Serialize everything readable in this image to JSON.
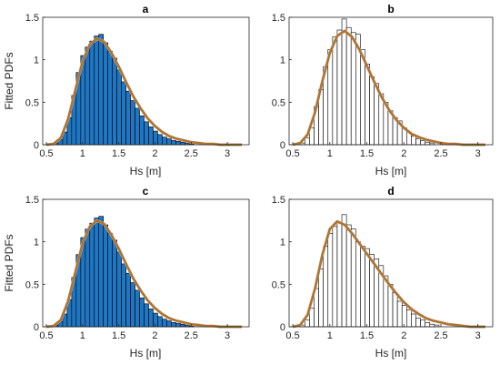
{
  "colors": {
    "filled_bar": "#1f77c4",
    "empty_bar": "#ffffff",
    "bar_edge": "#000000",
    "fit_line_outer": "#e8a0a8",
    "fit_line_main": "#5a8a2a",
    "fit_line_inner": "#d2691e"
  },
  "chart_data": [
    {
      "type": "bar",
      "title": "a",
      "xlabel": "Hs [m]",
      "ylabel": "Fitted PDFs",
      "xlim": [
        0.45,
        3.3
      ],
      "ylim": [
        0,
        1.5
      ],
      "xticks": [
        "0.5",
        "1",
        "1.5",
        "2",
        "2.5",
        "3"
      ],
      "xtick_values": [
        0.5,
        1,
        1.5,
        2,
        2.5,
        3
      ],
      "yticks": [
        "0",
        "0.5",
        "1",
        "1.5"
      ],
      "ytick_values": [
        0,
        0.5,
        1,
        1.5
      ],
      "bar_style": "filled",
      "bin_width": 0.0625,
      "bin_starts": [
        0.6,
        0.6625,
        0.725,
        0.7875,
        0.85,
        0.9125,
        0.975,
        1.0375,
        1.1,
        1.1625,
        1.225,
        1.2875,
        1.35,
        1.4125,
        1.475,
        1.5375,
        1.6,
        1.6625,
        1.725,
        1.7875,
        1.85,
        1.9125,
        1.975,
        2.0375,
        2.1,
        2.1625,
        2.225,
        2.2875,
        2.35,
        2.4125,
        2.475
      ],
      "values": [
        0.02,
        0.06,
        0.15,
        0.32,
        0.58,
        0.85,
        1.05,
        1.15,
        1.22,
        1.28,
        1.3,
        1.2,
        1.1,
        1.02,
        0.88,
        0.74,
        0.63,
        0.52,
        0.43,
        0.34,
        0.27,
        0.21,
        0.16,
        0.12,
        0.09,
        0.07,
        0.05,
        0.04,
        0.03,
        0.02,
        0.01
      ],
      "fit_curve": {
        "x": [
          0.5,
          0.6,
          0.7,
          0.8,
          0.9,
          1.0,
          1.1,
          1.2,
          1.3,
          1.4,
          1.5,
          1.6,
          1.7,
          1.8,
          1.9,
          2.0,
          2.1,
          2.2,
          2.3,
          2.4,
          2.5,
          2.6,
          2.7,
          2.8,
          2.9,
          3.0,
          3.1,
          3.2
        ],
        "y": [
          0.0,
          0.01,
          0.08,
          0.3,
          0.64,
          0.98,
          1.18,
          1.25,
          1.21,
          1.08,
          0.92,
          0.74,
          0.57,
          0.43,
          0.31,
          0.22,
          0.15,
          0.1,
          0.07,
          0.05,
          0.03,
          0.02,
          0.01,
          0.01,
          0.0,
          0.0,
          0.0,
          0.0
        ]
      }
    },
    {
      "type": "bar",
      "title": "b",
      "xlabel": "Hs [m]",
      "ylabel": "",
      "xlim": [
        0.45,
        3.2
      ],
      "ylim": [
        0,
        1.5
      ],
      "xticks": [
        "0.5",
        "1",
        "1.5",
        "2",
        "2.5",
        "3"
      ],
      "xtick_values": [
        0.5,
        1,
        1.5,
        2,
        2.5,
        3
      ],
      "yticks": [
        "0",
        "0.5",
        "1",
        "1.5"
      ],
      "ytick_values": [
        0,
        0.5,
        1,
        1.5
      ],
      "bar_style": "outline",
      "bin_width": 0.0625,
      "bin_starts": [
        0.6,
        0.6625,
        0.725,
        0.7875,
        0.85,
        0.9125,
        0.975,
        1.0375,
        1.1,
        1.1625,
        1.225,
        1.2875,
        1.35,
        1.4125,
        1.475,
        1.5375,
        1.6,
        1.6625,
        1.725,
        1.7875,
        1.85,
        1.9125,
        1.975,
        2.0375,
        2.1,
        2.1625,
        2.225,
        2.2875,
        2.35
      ],
      "values": [
        0.02,
        0.08,
        0.2,
        0.45,
        0.65,
        0.92,
        1.12,
        1.27,
        1.35,
        1.48,
        1.38,
        1.32,
        1.3,
        1.12,
        0.95,
        0.8,
        0.72,
        0.6,
        0.5,
        0.4,
        0.32,
        0.28,
        0.2,
        0.15,
        0.1,
        0.07,
        0.05,
        0.03,
        0.02
      ],
      "fit_curve": {
        "x": [
          0.5,
          0.6,
          0.7,
          0.8,
          0.9,
          1.0,
          1.1,
          1.2,
          1.3,
          1.4,
          1.5,
          1.6,
          1.7,
          1.8,
          1.9,
          2.0,
          2.1,
          2.2,
          2.3,
          2.4,
          2.5,
          2.6,
          2.7,
          2.8,
          2.9,
          3.0,
          3.1
        ],
        "y": [
          0.0,
          0.02,
          0.12,
          0.38,
          0.75,
          1.08,
          1.28,
          1.34,
          1.27,
          1.12,
          0.93,
          0.74,
          0.56,
          0.41,
          0.29,
          0.2,
          0.13,
          0.09,
          0.06,
          0.04,
          0.02,
          0.01,
          0.01,
          0.0,
          0.0,
          0.0,
          0.0
        ]
      }
    },
    {
      "type": "bar",
      "title": "c",
      "xlabel": "Hs [m]",
      "ylabel": "Fitted PDFs",
      "xlim": [
        0.45,
        3.3
      ],
      "ylim": [
        0,
        1.5
      ],
      "xticks": [
        "0.5",
        "1",
        "1.5",
        "2",
        "2.5",
        "3"
      ],
      "xtick_values": [
        0.5,
        1,
        1.5,
        2,
        2.5,
        3
      ],
      "yticks": [
        "0",
        "0.5",
        "1",
        "1.5"
      ],
      "ytick_values": [
        0,
        0.5,
        1,
        1.5
      ],
      "bar_style": "filled",
      "bin_width": 0.0625,
      "bin_starts": [
        0.6,
        0.6625,
        0.725,
        0.7875,
        0.85,
        0.9125,
        0.975,
        1.0375,
        1.1,
        1.1625,
        1.225,
        1.2875,
        1.35,
        1.4125,
        1.475,
        1.5375,
        1.6,
        1.6625,
        1.725,
        1.7875,
        1.85,
        1.9125,
        1.975,
        2.0375,
        2.1,
        2.1625,
        2.225,
        2.2875,
        2.35,
        2.4125,
        2.475
      ],
      "values": [
        0.02,
        0.06,
        0.15,
        0.32,
        0.58,
        0.85,
        1.05,
        1.15,
        1.22,
        1.28,
        1.3,
        1.2,
        1.1,
        1.02,
        0.88,
        0.74,
        0.63,
        0.52,
        0.43,
        0.34,
        0.27,
        0.21,
        0.16,
        0.12,
        0.09,
        0.07,
        0.05,
        0.04,
        0.03,
        0.02,
        0.01
      ],
      "fit_curve": {
        "x": [
          0.5,
          0.6,
          0.7,
          0.8,
          0.9,
          1.0,
          1.1,
          1.2,
          1.3,
          1.4,
          1.5,
          1.6,
          1.7,
          1.8,
          1.9,
          2.0,
          2.1,
          2.2,
          2.3,
          2.4,
          2.5,
          2.6,
          2.7,
          2.8,
          2.9,
          3.0,
          3.1,
          3.2
        ],
        "y": [
          0.0,
          0.01,
          0.08,
          0.3,
          0.64,
          0.98,
          1.18,
          1.25,
          1.21,
          1.08,
          0.92,
          0.74,
          0.57,
          0.43,
          0.31,
          0.22,
          0.15,
          0.1,
          0.07,
          0.05,
          0.03,
          0.02,
          0.01,
          0.01,
          0.0,
          0.0,
          0.0,
          0.0
        ]
      }
    },
    {
      "type": "bar",
      "title": "d",
      "xlabel": "Hs [m]",
      "ylabel": "",
      "xlim": [
        0.45,
        3.2
      ],
      "ylim": [
        0,
        1.5
      ],
      "xticks": [
        "0.5",
        "1",
        "1.5",
        "2",
        "2.5",
        "3"
      ],
      "xtick_values": [
        0.5,
        1,
        1.5,
        2,
        2.5,
        3
      ],
      "yticks": [
        "0",
        "0.5",
        "1",
        "1.5"
      ],
      "ytick_values": [
        0,
        0.5,
        1,
        1.5
      ],
      "bar_style": "outline",
      "bin_width": 0.0625,
      "bin_starts": [
        0.6,
        0.6625,
        0.725,
        0.7875,
        0.85,
        0.9125,
        0.975,
        1.0375,
        1.1,
        1.1625,
        1.225,
        1.2875,
        1.35,
        1.4125,
        1.475,
        1.5375,
        1.6,
        1.6625,
        1.725,
        1.7875,
        1.85,
        1.9125,
        1.975,
        2.0375,
        2.1,
        2.1625,
        2.225,
        2.2875,
        2.35,
        2.4125
      ],
      "values": [
        0.02,
        0.08,
        0.22,
        0.45,
        0.68,
        0.95,
        1.1,
        1.18,
        1.22,
        1.32,
        1.2,
        1.15,
        1.0,
        0.95,
        0.92,
        0.85,
        0.8,
        0.72,
        0.6,
        0.5,
        0.4,
        0.3,
        0.25,
        0.2,
        0.15,
        0.1,
        0.08,
        0.05,
        0.03,
        0.02
      ],
      "fit_curve": {
        "x": [
          0.5,
          0.6,
          0.7,
          0.8,
          0.9,
          1.0,
          1.1,
          1.2,
          1.3,
          1.4,
          1.5,
          1.6,
          1.7,
          1.8,
          1.9,
          2.0,
          2.1,
          2.2,
          2.3,
          2.4,
          2.5,
          2.6,
          2.7,
          2.8,
          2.9,
          3.0,
          3.1
        ],
        "y": [
          0.0,
          0.02,
          0.14,
          0.45,
          0.85,
          1.15,
          1.24,
          1.2,
          1.1,
          0.98,
          0.86,
          0.74,
          0.62,
          0.5,
          0.39,
          0.29,
          0.21,
          0.15,
          0.1,
          0.07,
          0.05,
          0.03,
          0.02,
          0.01,
          0.0,
          0.0,
          0.0
        ]
      }
    }
  ]
}
